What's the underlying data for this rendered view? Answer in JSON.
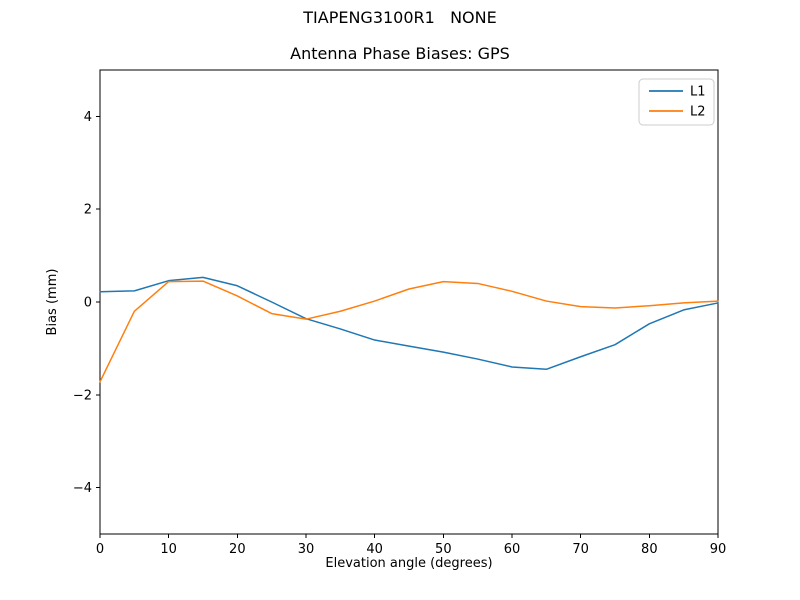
{
  "figure": {
    "suptitle": "TIAPENG3100R1   NONE",
    "axes_title": "Antenna Phase Biases: GPS"
  },
  "chart_data": {
    "type": "line",
    "title": "Antenna Phase Biases: GPS",
    "xlabel": "Elevation angle (degrees)",
    "ylabel": "Bias (mm)",
    "xlim": [
      0,
      90
    ],
    "ylim": [
      -5,
      5
    ],
    "xticks": [
      0,
      10,
      20,
      30,
      40,
      50,
      60,
      70,
      80,
      90
    ],
    "yticks": [
      -4,
      -2,
      0,
      2,
      4
    ],
    "grid": false,
    "legend_position": "upper right",
    "x": [
      0,
      5,
      10,
      15,
      20,
      25,
      30,
      35,
      40,
      45,
      50,
      55,
      60,
      65,
      70,
      75,
      80,
      85,
      90
    ],
    "series": [
      {
        "name": "L1",
        "color": "#1f77b4",
        "values": [
          0.22,
          0.24,
          0.46,
          0.53,
          0.35,
          0.0,
          -0.36,
          -0.58,
          -0.82,
          -0.95,
          -1.08,
          -1.23,
          -1.4,
          -1.45,
          -1.18,
          -0.92,
          -0.47,
          -0.17,
          -0.02
        ]
      },
      {
        "name": "L2",
        "color": "#ff7f0e",
        "values": [
          -1.72,
          -0.2,
          0.44,
          0.45,
          0.13,
          -0.25,
          -0.37,
          -0.2,
          0.02,
          0.28,
          0.44,
          0.4,
          0.23,
          0.02,
          -0.1,
          -0.13,
          -0.08,
          -0.02,
          0.02
        ]
      }
    ]
  },
  "style": {
    "axis_color": "#000000",
    "legend_border_color": "#cccccc",
    "background": "#ffffff"
  }
}
